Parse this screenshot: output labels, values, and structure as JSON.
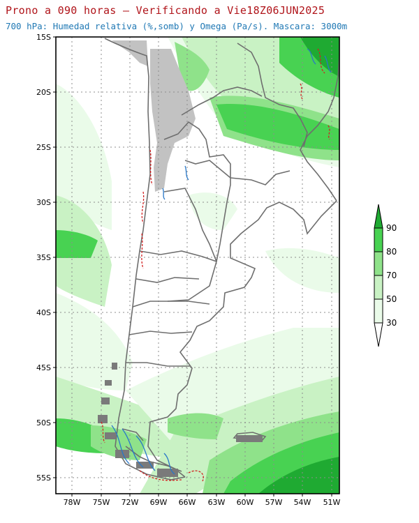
{
  "header": {
    "title": "Prono a 090 horas — Verificando a Vie18Z06JUN2025",
    "subtitle": "700 hPa: Humedad relativa (%,somb) y Omega (Pa/s). Mascara: 3000m"
  },
  "map": {
    "lat_labels": [
      "15S",
      "20S",
      "25S",
      "30S",
      "35S",
      "40S",
      "45S",
      "50S",
      "55S"
    ],
    "lon_labels": [
      "78W",
      "75W",
      "72W",
      "69W",
      "66W",
      "63W",
      "60W",
      "57W",
      "54W",
      "51W"
    ],
    "lat_range": [
      -56,
      -15
    ],
    "lon_range": [
      -80,
      -50.5
    ],
    "grid": true
  },
  "colors": {
    "rh_30_50": "#eafbe9",
    "rh_50_70": "#c9f2c4",
    "rh_70_80": "#8fe28a",
    "rh_80_90": "#48d252",
    "rh_90_plus": "#1faa32",
    "mask": "#c2c2c2",
    "coast": "#6e6e6e",
    "omega_pos": "#d22020",
    "omega_neg": "#2877c8"
  },
  "legend": {
    "labels": [
      "90",
      "80",
      "70",
      "50",
      "30"
    ]
  }
}
